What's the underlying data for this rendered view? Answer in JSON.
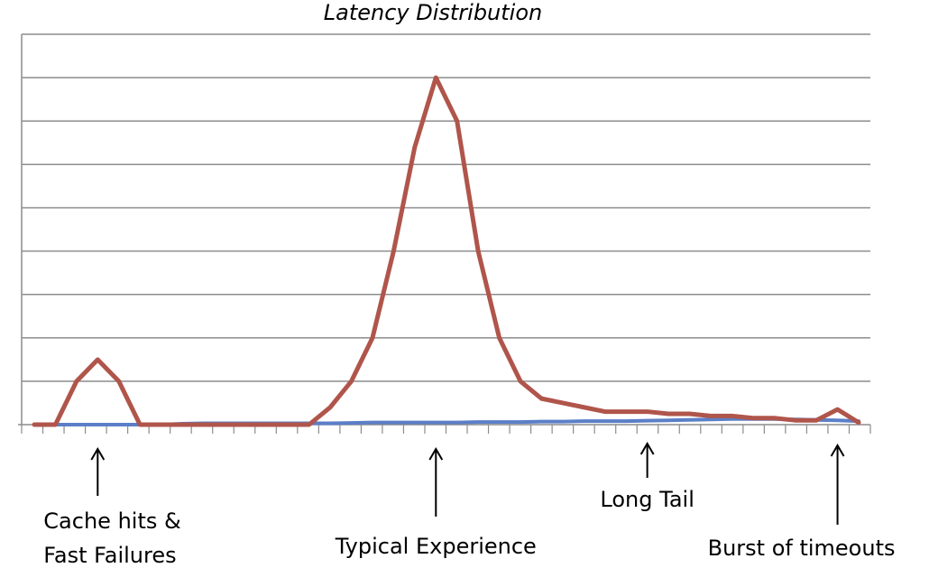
{
  "chart_data": {
    "type": "line",
    "title": "Latency Distribution",
    "xlabel": "",
    "ylabel": "",
    "grid": true,
    "legend": "none",
    "ylim": [
      0,
      9
    ],
    "x": [
      0,
      1,
      2,
      3,
      4,
      5,
      6,
      7,
      8,
      9,
      10,
      11,
      12,
      13,
      14,
      15,
      16,
      17,
      18,
      19,
      20,
      21,
      22,
      23,
      24,
      25,
      26,
      27,
      28,
      29,
      30,
      31,
      32,
      33,
      34,
      35,
      36,
      37,
      38,
      39
    ],
    "series": [
      {
        "color": "#b0554b",
        "values": [
          0,
          0,
          1.0,
          1.5,
          1.0,
          0,
          0,
          0,
          0,
          0,
          0,
          0,
          0,
          0,
          0.4,
          1.0,
          2.0,
          4.0,
          6.4,
          8.0,
          7.0,
          4.0,
          2.0,
          1.0,
          0.6,
          0.5,
          0.4,
          0.3,
          0.3,
          0.3,
          0.25,
          0.25,
          0.2,
          0.2,
          0.15,
          0.15,
          0.1,
          0.1,
          0.35,
          0.05
        ]
      },
      {
        "color": "#5b7fc7",
        "values": [
          0,
          0,
          0,
          0,
          0,
          0,
          0,
          0.02,
          0.03,
          0.03,
          0.03,
          0.03,
          0.03,
          0.03,
          0.03,
          0.04,
          0.05,
          0.05,
          0.05,
          0.05,
          0.05,
          0.06,
          0.06,
          0.06,
          0.07,
          0.07,
          0.08,
          0.08,
          0.08,
          0.09,
          0.1,
          0.11,
          0.12,
          0.13,
          0.13,
          0.13,
          0.12,
          0.11,
          0.1,
          0.08
        ]
      }
    ],
    "annotations": [
      {
        "x": 3.0,
        "lines": [
          "Cache hits  &",
          "Fast Failures"
        ]
      },
      {
        "x": 19.0,
        "lines": [
          "Typical Experience"
        ]
      },
      {
        "x": 29.0,
        "lines": [
          "Long Tail"
        ]
      },
      {
        "x": 38.0,
        "lines": [
          "Burst of timeouts"
        ]
      }
    ]
  }
}
